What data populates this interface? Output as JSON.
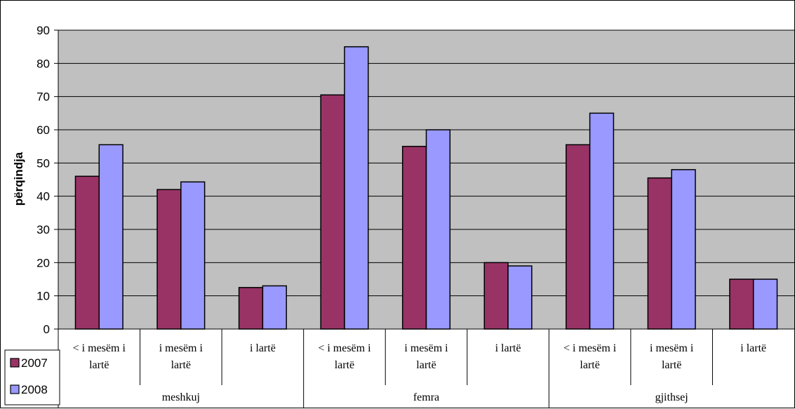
{
  "chart_data": {
    "type": "bar",
    "title": "",
    "xlabel": "",
    "ylabel": "përqindja",
    "ylim": [
      0,
      90
    ],
    "yticks": [
      0,
      10,
      20,
      30,
      40,
      50,
      60,
      70,
      80,
      90
    ],
    "grid": true,
    "legend_position": "bottom-left",
    "groups": [
      {
        "label": "meshkuj",
        "categories": [
          [
            "< i mesëm i",
            "lartë"
          ],
          [
            "i mesëm i",
            "lartë"
          ],
          [
            "i  lartë"
          ]
        ]
      },
      {
        "label": "femra",
        "categories": [
          [
            "< i mesëm i",
            "lartë"
          ],
          [
            "i mesëm i",
            "lartë"
          ],
          [
            "i  lartë"
          ]
        ]
      },
      {
        "label": "gjithsej",
        "categories": [
          [
            "< i mesëm i",
            "lartë"
          ],
          [
            "i mesëm i",
            "lartë"
          ],
          [
            "i  lartë"
          ]
        ]
      }
    ],
    "series": [
      {
        "name": "2007",
        "color": "#993366",
        "values": [
          46,
          42,
          12.5,
          70.5,
          55,
          20,
          55.5,
          45.5,
          15
        ]
      },
      {
        "name": "2008",
        "color": "#9999ff",
        "values": [
          55.5,
          44.3,
          13,
          85,
          60,
          19,
          65,
          48,
          15
        ]
      }
    ],
    "plot_background": "#c0c0c0"
  }
}
